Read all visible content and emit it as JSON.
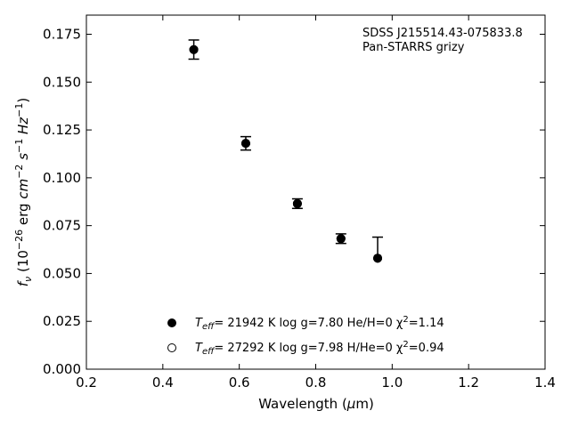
{
  "chart_data": {
    "type": "scatter",
    "title": "",
    "xlabel": {
      "pre": "Wavelength (",
      "mu": "μ",
      "post": "m)"
    },
    "ylabel": {
      "f": "f",
      "sub": "ν",
      "a": " (10",
      "exp1": "−26",
      "b": " erg ",
      "cm": "cm",
      "exp2": "−2",
      "s": " s",
      "exp3": "−1",
      "hz": " Hz",
      "exp4": "−1",
      "c": ")"
    },
    "xlim": [
      0.2,
      1.4
    ],
    "ylim": [
      0.0,
      0.185
    ],
    "x_ticks": [
      "0.2",
      "0.4",
      "0.6",
      "0.8",
      "1.0",
      "1.2",
      "1.4"
    ],
    "y_ticks": [
      "0.000",
      "0.025",
      "0.050",
      "0.075",
      "0.100",
      "0.125",
      "0.150",
      "0.175"
    ],
    "grid": false,
    "ticks_direction": "in",
    "annotations": [
      "SDSS J215514.43-075833.8",
      "Pan-STARRS grizy"
    ],
    "observed": {
      "marker": "filled-circle",
      "color": "#000000",
      "points": [
        {
          "x": 0.481,
          "y": 0.167,
          "err_low": 0.005,
          "err_high": 0.005
        },
        {
          "x": 0.617,
          "y": 0.118,
          "err_low": 0.0035,
          "err_high": 0.0035
        },
        {
          "x": 0.752,
          "y": 0.0865,
          "err_low": 0.0025,
          "err_high": 0.0025
        },
        {
          "x": 0.866,
          "y": 0.0682,
          "err_low": 0.0025,
          "err_high": 0.0025
        },
        {
          "x": 0.962,
          "y": 0.058,
          "err_low": 0.0,
          "err_high": 0.011
        }
      ]
    },
    "models": [
      {
        "name_label": {
          "t": "T",
          "eff": "eff",
          "rest": "= 21942 K  log g=7.80  He/H=0  χ",
          "sq": "2",
          "chi": "=1.14"
        },
        "marker": "filled-circle",
        "points": [
          {
            "x": 0.481,
            "y": 0.167
          },
          {
            "x": 0.617,
            "y": 0.118
          },
          {
            "x": 0.752,
            "y": 0.0865
          },
          {
            "x": 0.866,
            "y": 0.0682
          },
          {
            "x": 0.962,
            "y": 0.058
          }
        ]
      },
      {
        "name_label": {
          "t": "T",
          "eff": "eff",
          "rest": "= 27292 K  log g=7.98  H/He=0  χ",
          "sq": "2",
          "chi": "=0.94"
        },
        "marker": "open-circle",
        "points": [
          {
            "x": 0.481,
            "y": 0.167
          },
          {
            "x": 0.617,
            "y": 0.118
          },
          {
            "x": 0.752,
            "y": 0.0865
          },
          {
            "x": 0.866,
            "y": 0.0682
          },
          {
            "x": 0.962,
            "y": 0.058
          }
        ]
      }
    ],
    "legend_location": "lower-center"
  }
}
